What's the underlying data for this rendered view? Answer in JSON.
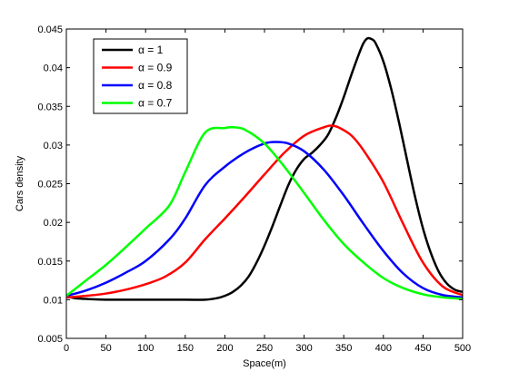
{
  "chart_data": {
    "type": "line",
    "xlabel": "Space(m)",
    "ylabel": "Cars density",
    "xlim": [
      0,
      500
    ],
    "ylim": [
      0.005,
      0.045
    ],
    "xticks": [
      0,
      50,
      100,
      150,
      200,
      250,
      300,
      350,
      400,
      450,
      500
    ],
    "yticks": [
      0.005,
      0.01,
      0.015,
      0.02,
      0.025,
      0.03,
      0.035,
      0.04,
      0.045
    ],
    "xtick_labels": [
      "0",
      "50",
      "100",
      "150",
      "200",
      "250",
      "300",
      "350",
      "400",
      "450",
      "500"
    ],
    "ytick_labels": [
      "0.005",
      "0.01",
      "0.015",
      "0.02",
      "0.025",
      "0.03",
      "0.035",
      "0.04",
      "0.045"
    ],
    "grid": false,
    "legend_position": "top-left",
    "series": [
      {
        "name": "α = 1",
        "color": "#000000",
        "x": [
          0,
          10,
          25,
          50,
          100,
          150,
          175,
          190,
          200,
          210,
          220,
          230,
          240,
          250,
          260,
          270,
          280,
          290,
          300,
          310,
          320,
          330,
          340,
          350,
          360,
          370,
          375,
          380,
          385,
          390,
          400,
          410,
          420,
          430,
          440,
          450,
          460,
          470,
          480,
          490,
          500
        ],
        "y": [
          0.0105,
          0.0102,
          0.0101,
          0.01,
          0.01,
          0.01,
          0.01,
          0.0102,
          0.0105,
          0.011,
          0.0118,
          0.013,
          0.0148,
          0.017,
          0.0195,
          0.0222,
          0.0248,
          0.0268,
          0.0282,
          0.029,
          0.03,
          0.0313,
          0.0335,
          0.0362,
          0.0392,
          0.042,
          0.0432,
          0.0438,
          0.0437,
          0.0432,
          0.0408,
          0.0372,
          0.0328,
          0.028,
          0.0233,
          0.0192,
          0.016,
          0.0136,
          0.0121,
          0.0113,
          0.011
        ]
      },
      {
        "name": "α = 0.9",
        "color": "#ff0000",
        "x": [
          0,
          25,
          50,
          75,
          100,
          125,
          150,
          175,
          200,
          225,
          250,
          275,
          300,
          325,
          335,
          345,
          360,
          375,
          400,
          425,
          450,
          475,
          500
        ],
        "y": [
          0.0103,
          0.0105,
          0.0108,
          0.0113,
          0.012,
          0.013,
          0.0148,
          0.0178,
          0.0205,
          0.0233,
          0.0262,
          0.029,
          0.0312,
          0.0323,
          0.0325,
          0.0322,
          0.0312,
          0.0293,
          0.0252,
          0.0198,
          0.0148,
          0.0117,
          0.0106
        ]
      },
      {
        "name": "α = 0.8",
        "color": "#0000ff",
        "x": [
          0,
          25,
          50,
          75,
          100,
          130,
          150,
          175,
          200,
          225,
          250,
          265,
          280,
          300,
          325,
          350,
          375,
          400,
          425,
          450,
          475,
          500
        ],
        "y": [
          0.0105,
          0.0112,
          0.0122,
          0.0135,
          0.015,
          0.0178,
          0.0205,
          0.0248,
          0.0272,
          0.029,
          0.0302,
          0.0304,
          0.0302,
          0.0292,
          0.0268,
          0.0235,
          0.0198,
          0.0163,
          0.0134,
          0.0115,
          0.0106,
          0.0103
        ]
      },
      {
        "name": "α = 0.7",
        "color": "#00ff00",
        "x": [
          0,
          25,
          50,
          75,
          100,
          130,
          150,
          175,
          200,
          210,
          225,
          250,
          275,
          300,
          325,
          350,
          375,
          400,
          425,
          450,
          475,
          500
        ],
        "y": [
          0.0105,
          0.0125,
          0.0145,
          0.0168,
          0.0192,
          0.0222,
          0.0265,
          0.0316,
          0.0322,
          0.0323,
          0.032,
          0.0302,
          0.0272,
          0.0238,
          0.0203,
          0.0172,
          0.0148,
          0.0128,
          0.0115,
          0.0107,
          0.0103,
          0.0101
        ]
      }
    ]
  }
}
